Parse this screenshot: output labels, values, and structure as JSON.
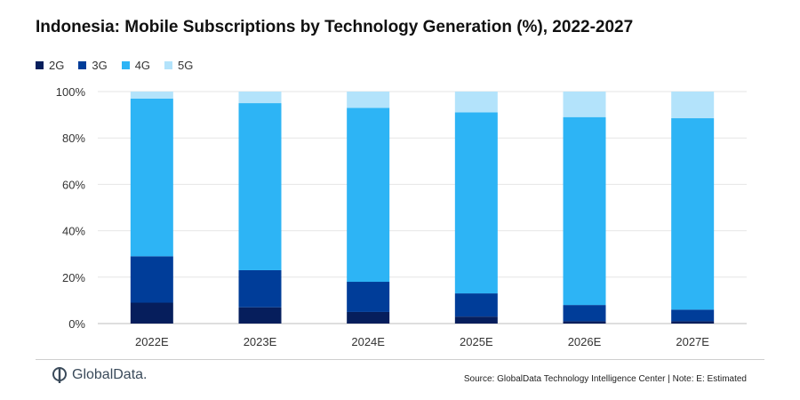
{
  "chart_data": {
    "type": "bar",
    "stacked": true,
    "title": "Indonesia: Mobile Subscriptions by Technology Generation (%), 2022-2027",
    "categories": [
      "2022E",
      "2023E",
      "2024E",
      "2025E",
      "2026E",
      "2027E"
    ],
    "series": [
      {
        "name": "2G",
        "color": "#061e5c",
        "values": [
          9,
          7,
          5,
          3,
          1,
          1
        ]
      },
      {
        "name": "3G",
        "color": "#003d99",
        "values": [
          20,
          16,
          13,
          10,
          7,
          5
        ]
      },
      {
        "name": "4G",
        "color": "#2db4f5",
        "values": [
          68,
          72,
          75,
          78,
          81,
          82.5
        ]
      },
      {
        "name": "5G",
        "color": "#b3e3fb",
        "values": [
          3,
          5,
          7,
          9,
          11,
          11.5
        ]
      }
    ],
    "yticks": [
      "0%",
      "20%",
      "40%",
      "60%",
      "80%",
      "100%"
    ],
    "ylim": [
      0,
      100
    ],
    "xlabel": "",
    "ylabel": "",
    "legend_position": "top-left",
    "grid": true
  },
  "footer": {
    "logo_text": "GlobalData.",
    "source": "Source: GlobalData Technology Intelligence Center | Note: E: Estimated"
  }
}
